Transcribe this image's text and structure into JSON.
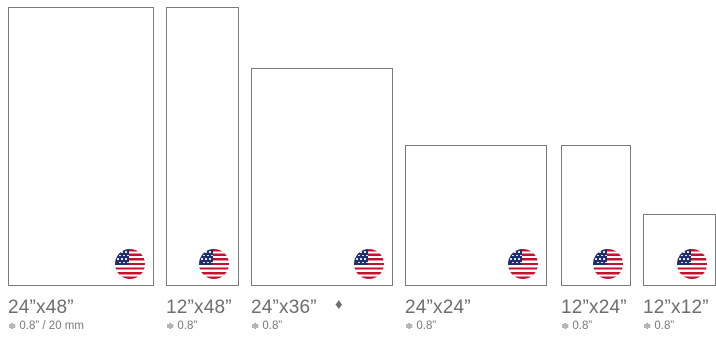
{
  "products": [
    {
      "size": "24”x48”",
      "thickness": "0.8” / 20 mm",
      "flag_icon": "us-flag-icon",
      "thickness_icon": "thickness-icon"
    },
    {
      "size": "12”x48”",
      "thickness": "0.8”",
      "flag_icon": "us-flag-icon",
      "thickness_icon": "thickness-icon"
    },
    {
      "size": "24”x36”",
      "thickness": "0.8”",
      "marker": "♦",
      "flag_icon": "us-flag-icon",
      "thickness_icon": "thickness-icon"
    },
    {
      "size": "24”x24”",
      "thickness": "0.8”",
      "flag_icon": "us-flag-icon",
      "thickness_icon": "thickness-icon"
    },
    {
      "size": "12”x24”",
      "thickness": "0.8”",
      "flag_icon": "us-flag-icon",
      "thickness_icon": "thickness-icon"
    },
    {
      "size": "12”x12”",
      "thickness": "0.8”",
      "flag_icon": "us-flag-icon",
      "thickness_icon": "thickness-icon"
    }
  ],
  "thickness_glyph": "≑",
  "colors": {
    "border": "#7a7a7a",
    "text": "#6e6e6e",
    "flag_red": "#c8102e",
    "flag_blue": "#1f2f6e"
  }
}
